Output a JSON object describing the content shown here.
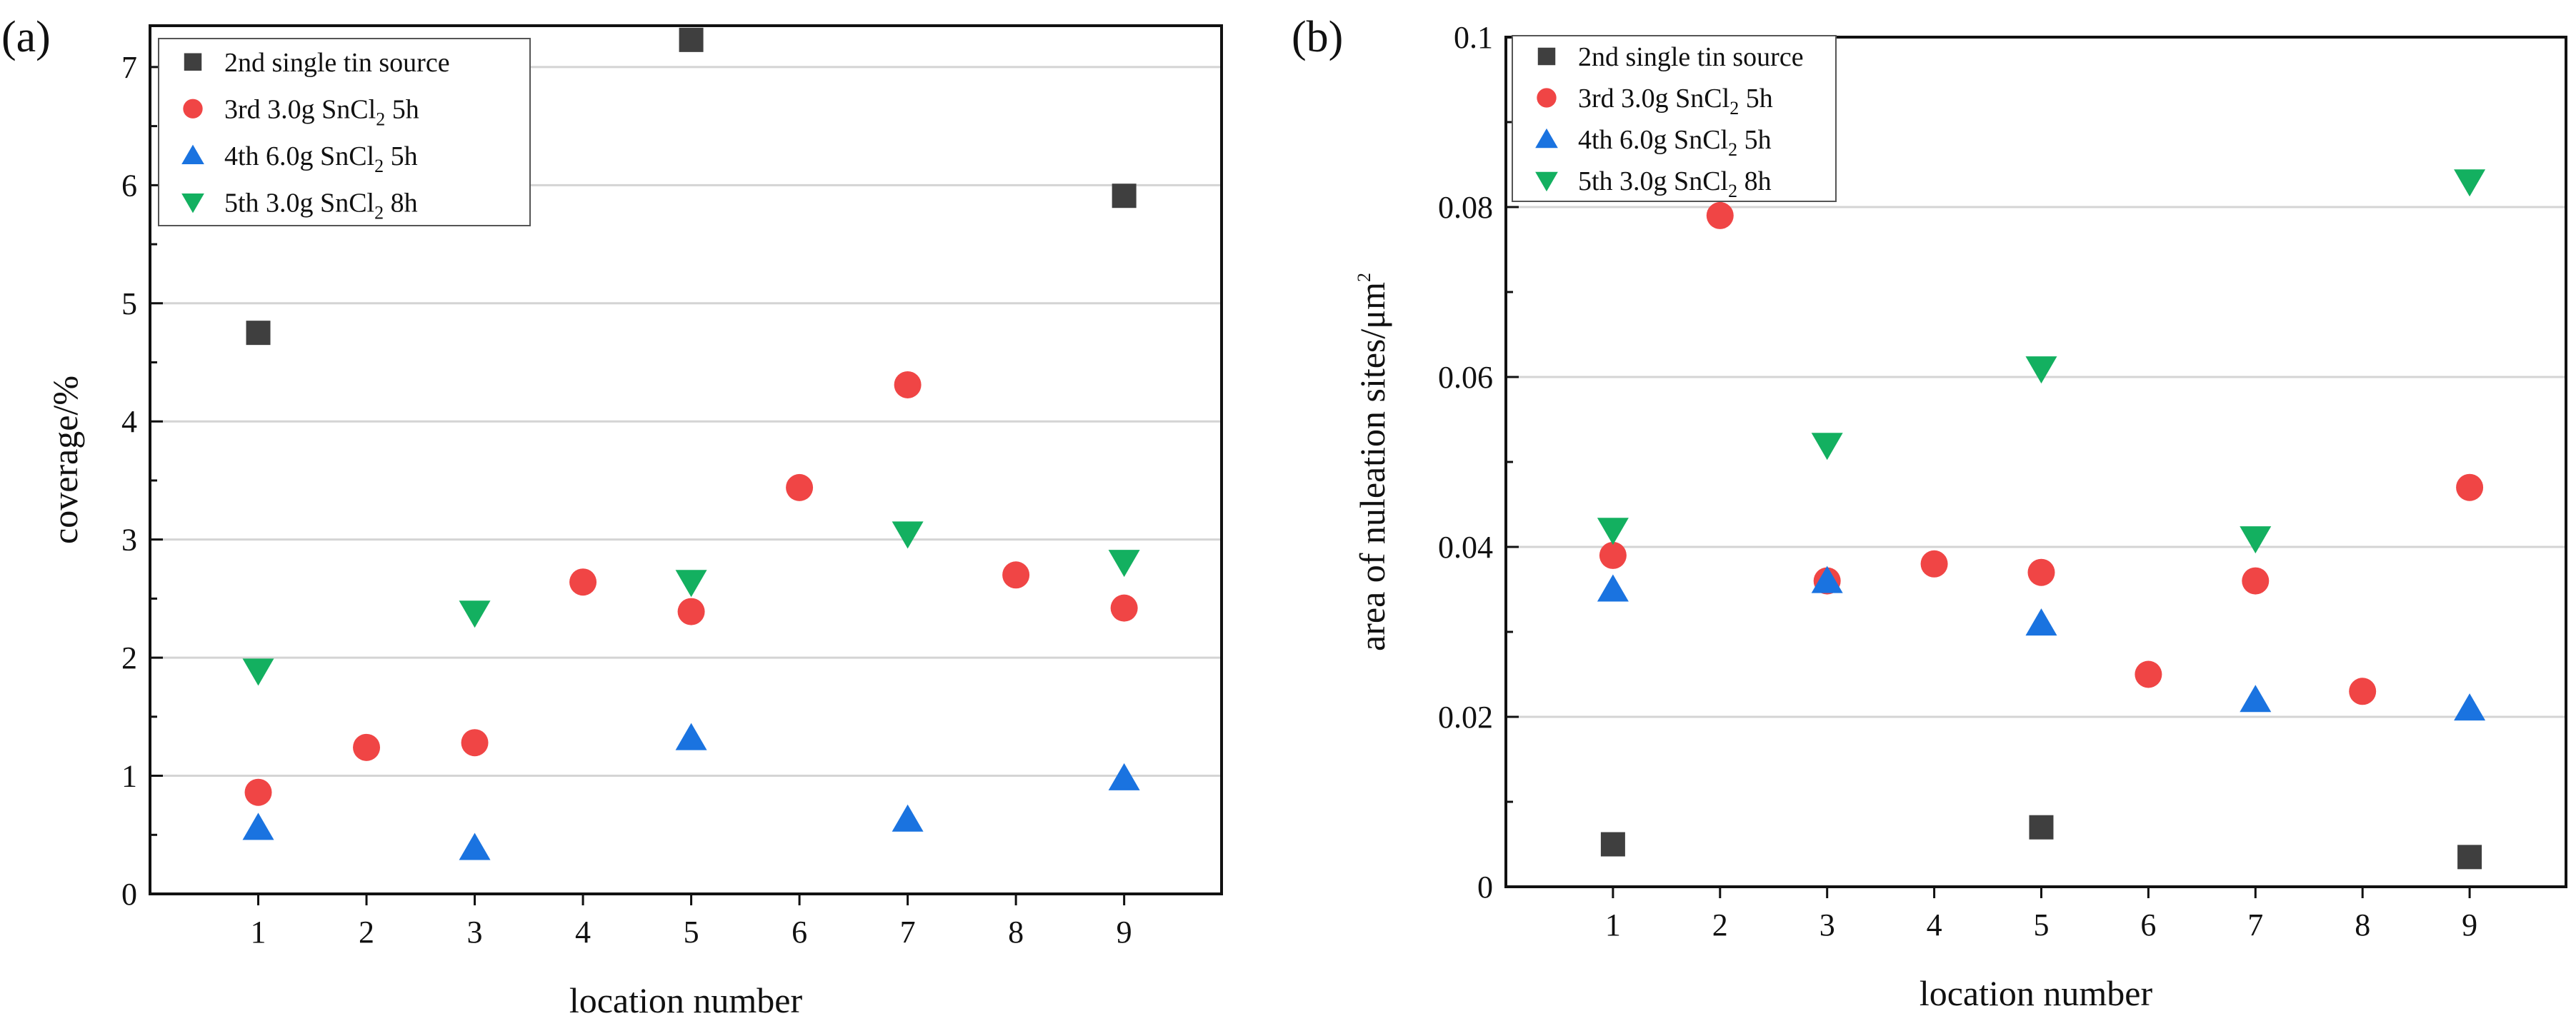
{
  "figure": {
    "panels": [
      "(a)",
      "(b)"
    ]
  },
  "colors": {
    "series_2nd": "#3f3f3f",
    "series_3rd": "#f04545",
    "series_4th": "#1a73e0",
    "series_5th": "#13b060",
    "grid": "#d4d4d4",
    "axis": "#111111"
  },
  "chart_data": [
    {
      "type": "scatter",
      "panel_label": "(a)",
      "title": "",
      "xlabel": "location number",
      "ylabel": "coverage/%",
      "xlim": [
        0,
        9.9
      ],
      "ylim": [
        0,
        7.35
      ],
      "xticks": [
        1,
        2,
        3,
        4,
        5,
        6,
        7,
        8,
        9
      ],
      "xtick_labels": [
        "1",
        "2",
        "3",
        "4",
        "5",
        "6",
        "7",
        "8",
        "9"
      ],
      "yticks": [
        0,
        1,
        2,
        3,
        4,
        5,
        6,
        7
      ],
      "ytick_labels": [
        "0",
        "1",
        "2",
        "3",
        "4",
        "5",
        "6",
        "7"
      ],
      "grid": "horizontal",
      "legend_position": "top-left",
      "series": [
        {
          "name": "2nd single tin source",
          "legend_main": "2nd single tin source",
          "legend_sub": "",
          "legend_tail": "",
          "marker": "square",
          "color_key": "series_2nd",
          "points": [
            [
              1,
              4.75
            ],
            [
              5,
              7.23
            ],
            [
              9,
              5.91
            ]
          ]
        },
        {
          "name": "3rd 3.0g SnCl2 5h",
          "legend_main": "3rd 3.0g SnCl",
          "legend_sub": "2",
          "legend_tail": " 5h",
          "marker": "circle",
          "color_key": "series_3rd",
          "points": [
            [
              1,
              0.86
            ],
            [
              2,
              1.24
            ],
            [
              3,
              1.28
            ],
            [
              4,
              2.64
            ],
            [
              5,
              2.39
            ],
            [
              6,
              3.44
            ],
            [
              7,
              4.31
            ],
            [
              8,
              2.7
            ],
            [
              9,
              2.42
            ]
          ]
        },
        {
          "name": "4th 6.0g SnCl2 5h",
          "legend_main": "4th 6.0g SnCl",
          "legend_sub": "2",
          "legend_tail": " 5h",
          "marker": "triangle-up",
          "color_key": "series_4th",
          "points": [
            [
              1,
              0.56
            ],
            [
              3,
              0.39
            ],
            [
              5,
              1.32
            ],
            [
              7,
              0.63
            ],
            [
              9,
              0.98
            ]
          ]
        },
        {
          "name": "5th 3.0g SnCl2 8h",
          "legend_main": "5th 3.0g SnCl",
          "legend_sub": "2",
          "legend_tail": " 8h",
          "marker": "triangle-down",
          "color_key": "series_5th",
          "points": [
            [
              1,
              1.89
            ],
            [
              3,
              2.38
            ],
            [
              5,
              2.64
            ],
            [
              7,
              3.05
            ],
            [
              9,
              2.81
            ]
          ]
        }
      ]
    },
    {
      "type": "scatter",
      "panel_label": "(b)",
      "title": "",
      "xlabel": "location number",
      "ylabel_main": "area of nuleation sites/μm",
      "ylabel_sup": "2",
      "xlim": [
        0,
        9.9
      ],
      "ylim": [
        0,
        0.1
      ],
      "xticks": [
        1,
        2,
        3,
        4,
        5,
        6,
        7,
        8,
        9
      ],
      "xtick_labels": [
        "1",
        "2",
        "3",
        "4",
        "5",
        "6",
        "7",
        "8",
        "9"
      ],
      "yticks": [
        0,
        0.02,
        0.04,
        0.06,
        0.08,
        0.1
      ],
      "ytick_labels": [
        "0",
        "0.02",
        "0.04",
        "0.06",
        "0.08",
        "0.1"
      ],
      "grid": "horizontal",
      "legend_position": "top-left",
      "series": [
        {
          "name": "2nd single tin source",
          "legend_main": "2nd single tin source",
          "legend_sub": "",
          "legend_tail": "",
          "marker": "square",
          "color_key": "series_2nd",
          "points": [
            [
              1,
              0.005
            ],
            [
              5,
              0.007
            ],
            [
              9,
              0.0035
            ]
          ]
        },
        {
          "name": "3rd 3.0g SnCl2 5h",
          "legend_main": "3rd 3.0g SnCl",
          "legend_sub": "2",
          "legend_tail": " 5h",
          "marker": "circle",
          "color_key": "series_3rd",
          "points": [
            [
              1,
              0.039
            ],
            [
              2,
              0.079
            ],
            [
              3,
              0.036
            ],
            [
              4,
              0.038
            ],
            [
              5,
              0.037
            ],
            [
              6,
              0.025
            ],
            [
              7,
              0.036
            ],
            [
              8,
              0.023
            ],
            [
              9,
              0.047
            ]
          ]
        },
        {
          "name": "4th 6.0g SnCl2 5h",
          "legend_main": "4th 6.0g SnCl",
          "legend_sub": "2",
          "legend_tail": " 5h",
          "marker": "triangle-up",
          "color_key": "series_4th",
          "points": [
            [
              1,
              0.035
            ],
            [
              3,
              0.036
            ],
            [
              5,
              0.031
            ],
            [
              7,
              0.022
            ],
            [
              9,
              0.021
            ]
          ]
        },
        {
          "name": "5th 3.0g SnCl2 8h",
          "legend_main": "5th 3.0g SnCl",
          "legend_sub": "2",
          "legend_tail": " 8h",
          "marker": "triangle-down",
          "color_key": "series_5th",
          "points": [
            [
              1,
              0.042
            ],
            [
              3,
              0.052
            ],
            [
              5,
              0.061
            ],
            [
              7,
              0.041
            ],
            [
              9,
              0.083
            ]
          ]
        }
      ]
    }
  ]
}
